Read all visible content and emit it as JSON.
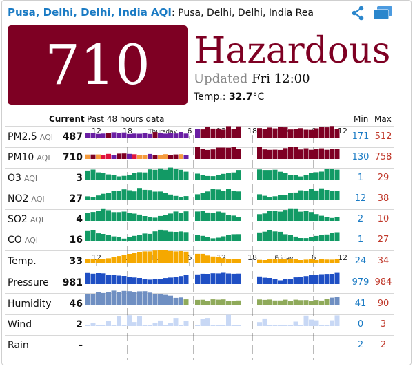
{
  "header": {
    "location_link": "Pusa, Delhi, Delhi, India",
    "aqi_link": "AQI",
    "title_rest": ": Pusa, Delhi, Delhi, India Rea",
    "share_icon": "share-icon",
    "window_icon": "window-icon"
  },
  "summary": {
    "aqi": "710",
    "level": "Hazardous",
    "updated_label": "Updated",
    "updated_value": "Fri 12:00",
    "temp_label": "Temp.:",
    "temp_value": "32.7",
    "temp_unit": "°C"
  },
  "table": {
    "current_header": "Current",
    "past_header": "Past 48 hours data",
    "min_header": "Min",
    "max_header": "Max",
    "axis_ticks": [
      "12",
      "18",
      "Thursday",
      "6",
      "12",
      "18",
      "Friday",
      "6",
      "12"
    ],
    "rows": [
      {
        "label": "PM2.5",
        "unit": "AQI",
        "current": "487",
        "min": "171",
        "max": "512"
      },
      {
        "label": "PM10",
        "unit": "AQI",
        "current": "710",
        "min": "130",
        "max": "758"
      },
      {
        "label": "O3",
        "unit": "AQI",
        "current": "3",
        "min": "1",
        "max": "29"
      },
      {
        "label": "NO2",
        "unit": "AQI",
        "current": "27",
        "min": "12",
        "max": "38"
      },
      {
        "label": "SO2",
        "unit": "AQI",
        "current": "4",
        "min": "2",
        "max": "10"
      },
      {
        "label": "CO",
        "unit": "AQI",
        "current": "16",
        "min": "1",
        "max": "27"
      },
      {
        "label": "Temp.",
        "unit": "",
        "current": "33",
        "min": "24",
        "max": "34"
      },
      {
        "label": "Pressure",
        "unit": "",
        "current": "981",
        "min": "979",
        "max": "984"
      },
      {
        "label": "Humidity",
        "unit": "",
        "current": "46",
        "min": "41",
        "max": "90"
      },
      {
        "label": "Wind",
        "unit": "",
        "current": "2",
        "min": "0",
        "max": "3"
      },
      {
        "label": "Rain",
        "unit": "",
        "current": "-",
        "min": "2",
        "max": "2"
      }
    ]
  },
  "colors": {
    "hazardous": "#7e0023",
    "very_unhealthy": "#6a1fa3",
    "unhealthy": "#e0143c",
    "sensitive": "#f59a3c",
    "good": "#129a65",
    "temp": "#f5a800",
    "pressure": "#1f4fc4",
    "humidity_low": "#8faa5a",
    "humidity_high": "#6f8fc2",
    "wind": "#c8d8f5",
    "link": "#1b7bc4",
    "max": "#c0392b"
  }
}
